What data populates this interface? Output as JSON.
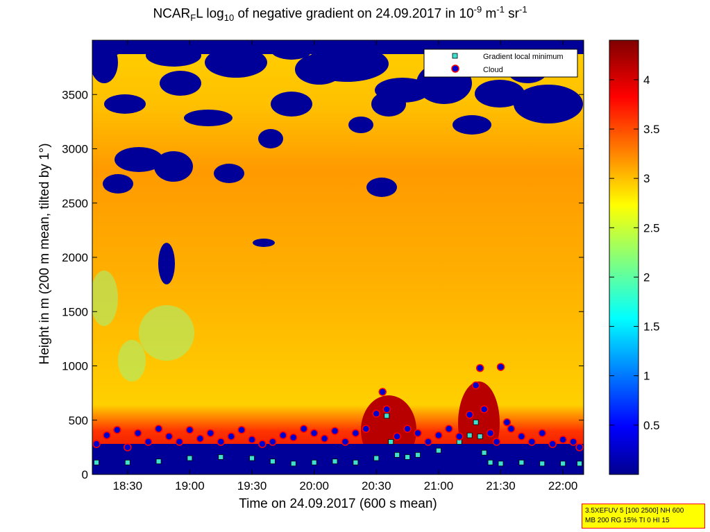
{
  "title": {
    "part1": "NCAR",
    "sub1": "F",
    "part2": "L log",
    "sub2": "10",
    "part3": " of negative gradient on 24.09.2017 in 10",
    "sup1": "-9",
    "part4": " m",
    "sup2": "-1",
    "part5": " sr",
    "sup3": "-1"
  },
  "info_box": {
    "line1": "3.5XEFUV 5 [100 2500] NH 600",
    "line2": "MB 200 RG 15% TI 0 HI 15"
  },
  "chart_data": {
    "type": "heatmap",
    "xlabel": "Time on 24.09.2017 (600 s mean)",
    "ylabel": "Height in m (200 m mean, tilted by 1°)",
    "xlim": [
      "18:13",
      "22:10"
    ],
    "ylim": [
      0,
      4000
    ],
    "x_ticks": [
      "18:30",
      "19:00",
      "19:30",
      "20:00",
      "20:30",
      "21:00",
      "21:30",
      "22:00"
    ],
    "y_ticks": [
      0,
      500,
      1000,
      1500,
      2000,
      2500,
      3000,
      3500
    ],
    "colorbar": {
      "colormap": "jet",
      "range": [
        0,
        4.4
      ],
      "ticks": [
        0.5,
        1,
        1.5,
        2,
        2.5,
        3,
        3.5,
        4
      ]
    },
    "legend": {
      "placement": "top-right",
      "entries": [
        {
          "label": "Gradient local minimum",
          "marker": "square",
          "color": "#40e0d0"
        },
        {
          "label": "Cloud",
          "marker": "circle",
          "color": "#0000cd",
          "edge": "#ff0000"
        }
      ]
    },
    "series": [
      {
        "name": "Gradient local minimum",
        "x": [
          "18:15",
          "18:30",
          "18:45",
          "19:00",
          "19:15",
          "19:30",
          "19:40",
          "19:50",
          "20:00",
          "20:10",
          "20:20",
          "20:30",
          "20:35",
          "20:37",
          "20:40",
          "20:45",
          "20:50",
          "21:00",
          "21:10",
          "21:15",
          "21:18",
          "21:20",
          "21:22",
          "21:25",
          "21:30",
          "21:40",
          "21:50",
          "22:00",
          "22:08"
        ],
        "values": [
          110,
          110,
          120,
          150,
          160,
          150,
          120,
          100,
          110,
          120,
          110,
          150,
          540,
          300,
          180,
          160,
          180,
          220,
          300,
          360,
          480,
          350,
          200,
          110,
          100,
          110,
          100,
          100,
          100
        ]
      },
      {
        "name": "Cloud",
        "x": [
          "18:15",
          "18:20",
          "18:25",
          "18:30",
          "18:35",
          "18:40",
          "18:45",
          "18:50",
          "18:55",
          "19:00",
          "19:05",
          "19:10",
          "19:15",
          "19:20",
          "19:25",
          "19:30",
          "19:35",
          "19:40",
          "19:45",
          "19:50",
          "19:55",
          "20:00",
          "20:05",
          "20:10",
          "20:15",
          "20:20",
          "20:25",
          "20:30",
          "20:33",
          "20:35",
          "20:40",
          "20:45",
          "20:50",
          "20:55",
          "21:00",
          "21:05",
          "21:10",
          "21:15",
          "21:18",
          "21:20",
          "21:22",
          "21:25",
          "21:28",
          "21:30",
          "21:33",
          "21:35",
          "21:40",
          "21:45",
          "21:50",
          "21:55",
          "22:00",
          "22:05",
          "22:08"
        ],
        "values": [
          280,
          360,
          410,
          250,
          380,
          300,
          420,
          350,
          300,
          410,
          330,
          380,
          300,
          350,
          410,
          320,
          280,
          300,
          360,
          340,
          420,
          380,
          330,
          400,
          300,
          380,
          420,
          560,
          760,
          600,
          350,
          420,
          380,
          300,
          360,
          420,
          350,
          550,
          820,
          980,
          600,
          380,
          300,
          990,
          480,
          420,
          350,
          300,
          380,
          280,
          320,
          300,
          250
        ]
      }
    ]
  }
}
